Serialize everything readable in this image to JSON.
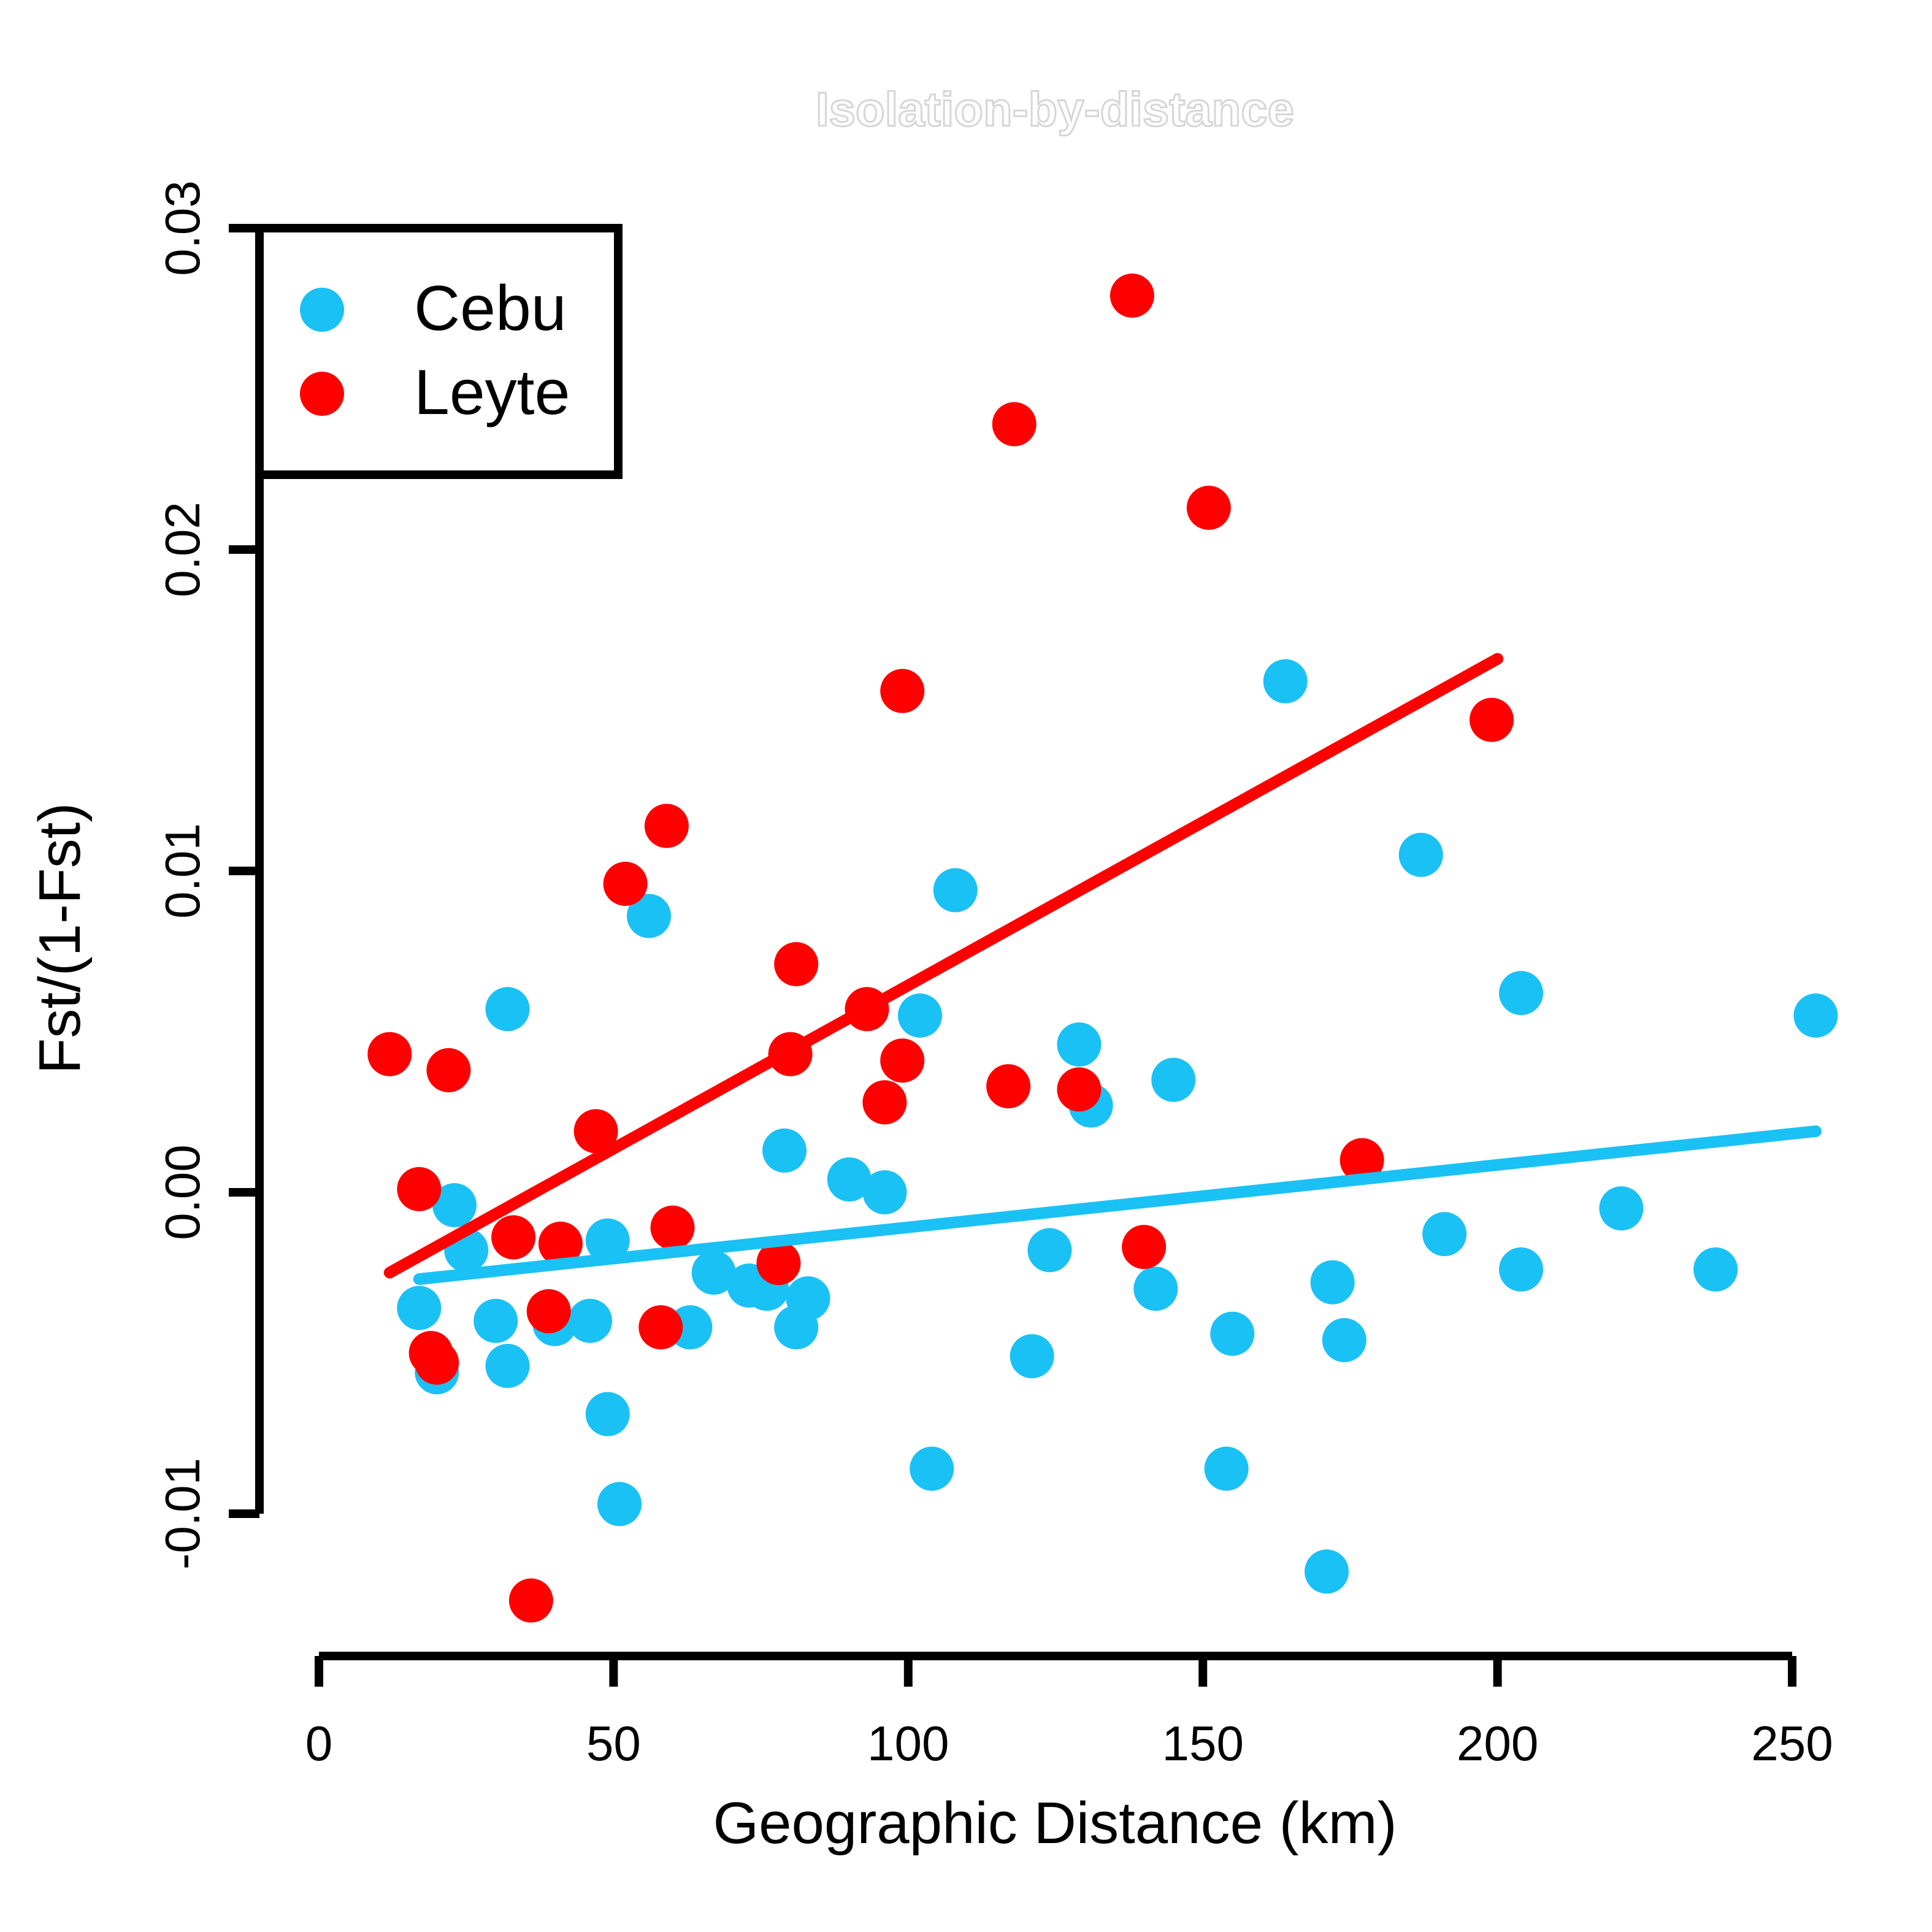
{
  "chart_data": {
    "type": "scatter",
    "title": "Isolation-by-distance",
    "xlabel": "Geographic Distance (km)",
    "ylabel": "Fst/(1-Fst)",
    "xlim": [
      0,
      250
    ],
    "ylim": [
      -0.01,
      0.03
    ],
    "x_ticks": [
      0,
      50,
      100,
      150,
      200,
      250
    ],
    "x_tick_labels": [
      "0",
      "50",
      "100",
      "150",
      "200",
      "250"
    ],
    "y_ticks": [
      -0.01,
      0.0,
      0.01,
      0.02,
      0.03
    ],
    "y_tick_labels": [
      "-0.01",
      "0.00",
      "0.01",
      "0.02",
      "0.03"
    ],
    "grid": false,
    "legend": {
      "position": "top-left",
      "entries": [
        "Cebu",
        "Leyte"
      ]
    },
    "series": [
      {
        "name": "Cebu",
        "color": "#1AC1F5",
        "x": [
          17,
          20,
          23,
          25,
          30,
          32,
          32,
          40,
          46,
          49,
          49,
          51,
          56,
          63,
          67,
          73,
          76,
          79,
          81,
          83,
          90,
          96,
          102,
          104,
          108,
          121,
          124,
          129,
          131,
          142,
          145,
          154,
          155,
          164,
          171,
          172,
          174,
          187,
          191,
          204,
          204,
          221,
          237,
          254
        ],
        "y": [
          -0.0036,
          -0.0056,
          -0.0004,
          -0.0018,
          -0.004,
          0.0057,
          -0.0054,
          -0.0041,
          -0.004,
          -0.0069,
          -0.0015,
          -0.0097,
          0.0086,
          -0.0042,
          -0.0025,
          -0.0029,
          -0.003,
          0.0013,
          -0.0042,
          -0.0033,
          0.0004,
          0.0,
          0.0055,
          -0.0086,
          0.0094,
          -0.0051,
          -0.0018,
          0.0046,
          0.0027,
          -0.003,
          0.0035,
          -0.0086,
          -0.0044,
          0.0159,
          -0.0118,
          -0.0028,
          -0.0046,
          0.0105,
          -0.0013,
          0.0062,
          -0.0024,
          -0.0005,
          -0.0024,
          0.0055
        ],
        "trend": {
          "x": [
            17,
            254
          ],
          "y": [
            -0.0027,
            0.0019
          ]
        }
      },
      {
        "name": "Leyte",
        "color": "#FF0000",
        "x": [
          12,
          17,
          19,
          20,
          22,
          33,
          36,
          39,
          41,
          47,
          52,
          58,
          59,
          60,
          78,
          80,
          81,
          93,
          96,
          99,
          99,
          117,
          118,
          129,
          138,
          140,
          151,
          177,
          199
        ],
        "y": [
          0.0043,
          0.0001,
          -0.005,
          -0.0053,
          0.0038,
          -0.0014,
          -0.0127,
          -0.0037,
          -0.0016,
          0.0019,
          0.0096,
          -0.0042,
          0.0114,
          -0.0011,
          -0.0022,
          0.0043,
          0.0071,
          0.0057,
          0.0028,
          0.0041,
          0.0156,
          0.0033,
          0.0239,
          0.0032,
          0.0279,
          -0.0017,
          0.0213,
          0.001,
          0.0147
        ],
        "trend": {
          "x": [
            12,
            200
          ],
          "y": [
            -0.0025,
            0.0166
          ]
        }
      }
    ]
  }
}
